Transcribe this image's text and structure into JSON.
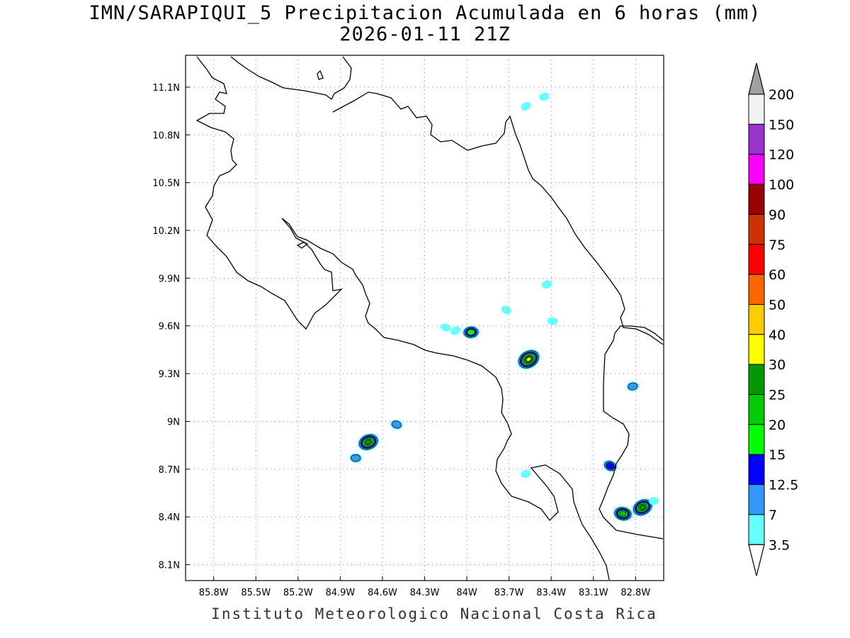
{
  "title": {
    "line1": "IMN/SARAPIQUI_5 Precipitacion Acumulada en 6 horas (mm)",
    "line2": "2026-01-11 21Z"
  },
  "credit": "Instituto Meteorologico Nacional Costa Rica",
  "map": {
    "lon_range": [
      -86.0,
      -82.6
    ],
    "lat_range": [
      8.0,
      11.3
    ],
    "lon_ticks": [
      "85.8W",
      "85.5W",
      "85.2W",
      "84.9W",
      "84.6W",
      "84.3W",
      "84W",
      "83.7W",
      "83.4W",
      "83.1W",
      "82.8W"
    ],
    "lat_ticks": [
      "11.1N",
      "10.8N",
      "10.5N",
      "10.2N",
      "9.9N",
      "9.6N",
      "9.3N",
      "9N",
      "8.7N",
      "8.4N",
      "8.1N"
    ],
    "grid": "dotted"
  },
  "colorbar": {
    "labels": [
      "200",
      "150",
      "120",
      "100",
      "90",
      "75",
      "60",
      "50",
      "40",
      "30",
      "25",
      "20",
      "15",
      "12.5",
      "7",
      "3.5"
    ],
    "colors": [
      "#f2f2f2",
      "#9933cc",
      "#ff00ff",
      "#990000",
      "#cc3300",
      "#ff0000",
      "#ff6600",
      "#ffcc00",
      "#ffff00",
      "#009900",
      "#00cc00",
      "#00ff00",
      "#0000ff",
      "#3399ff",
      "#66ffff"
    ],
    "top_arrow_color": "#a0a0a0",
    "bottom_arrow_color": "#ffffff"
  },
  "precip_cells": [
    {
      "lon": -83.58,
      "lat": 10.98,
      "max": "3.5"
    },
    {
      "lon": -83.45,
      "lat": 11.04,
      "max": "3.5"
    },
    {
      "lon": -84.15,
      "lat": 9.59,
      "max": "3.5"
    },
    {
      "lon": -84.08,
      "lat": 9.57,
      "max": "3.5"
    },
    {
      "lon": -83.97,
      "lat": 9.56,
      "max": "15"
    },
    {
      "lon": -83.72,
      "lat": 9.7,
      "max": "3.5"
    },
    {
      "lon": -83.43,
      "lat": 9.86,
      "max": "3.5"
    },
    {
      "lon": -83.39,
      "lat": 9.63,
      "max": "3.5"
    },
    {
      "lon": -83.56,
      "lat": 9.39,
      "max": "30"
    },
    {
      "lon": -82.82,
      "lat": 9.22,
      "max": "7"
    },
    {
      "lon": -84.5,
      "lat": 8.98,
      "max": "7"
    },
    {
      "lon": -84.7,
      "lat": 8.87,
      "max": "25"
    },
    {
      "lon": -84.79,
      "lat": 8.77,
      "max": "7"
    },
    {
      "lon": -82.98,
      "lat": 8.72,
      "max": "12.5"
    },
    {
      "lon": -83.58,
      "lat": 8.67,
      "max": "3.5"
    },
    {
      "lon": -82.89,
      "lat": 8.42,
      "max": "20"
    },
    {
      "lon": -82.75,
      "lat": 8.46,
      "max": "25"
    },
    {
      "lon": -82.67,
      "lat": 8.5,
      "max": "3.5"
    }
  ]
}
